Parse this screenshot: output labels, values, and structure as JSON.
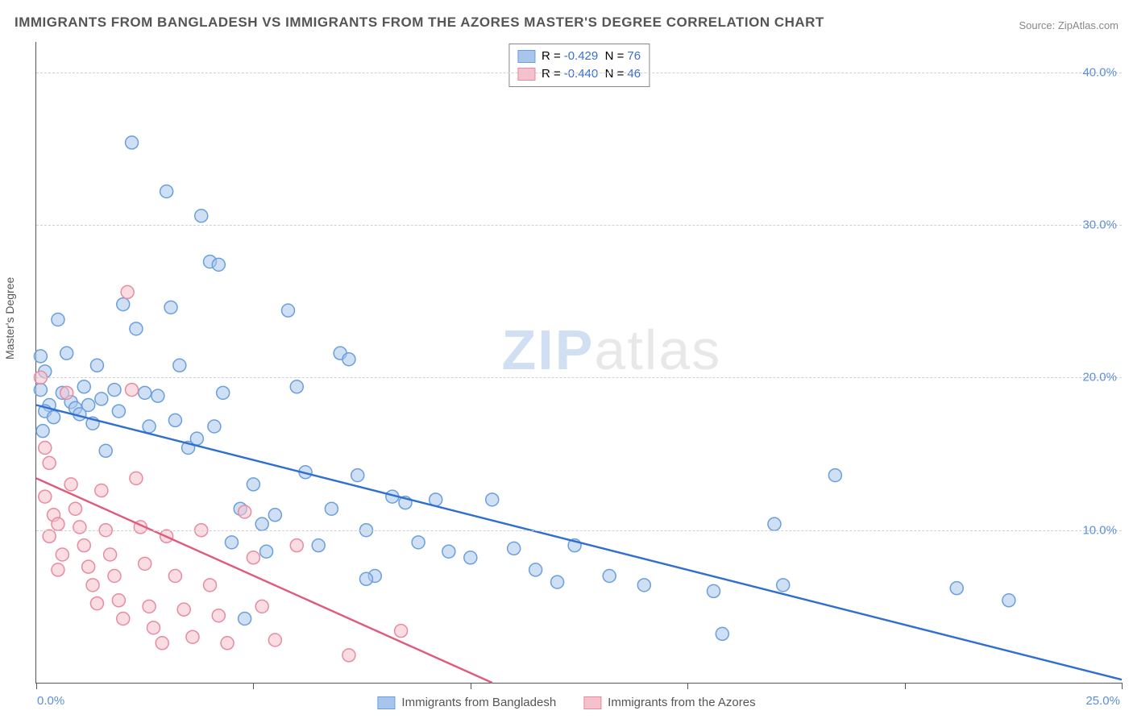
{
  "title": "IMMIGRANTS FROM BANGLADESH VS IMMIGRANTS FROM THE AZORES MASTER'S DEGREE CORRELATION CHART",
  "source": "Source: ZipAtlas.com",
  "watermark": {
    "zip": "ZIP",
    "atlas": "atlas"
  },
  "ylabel": "Master's Degree",
  "chart": {
    "type": "scatter",
    "xlim": [
      0,
      25
    ],
    "ylim": [
      0,
      42
    ],
    "xtick_positions": [
      0,
      5,
      10,
      15,
      20,
      25
    ],
    "xtick_labels": {
      "left": "0.0%",
      "right": "25.0%"
    },
    "ytick_positions": [
      10,
      20,
      30,
      40
    ],
    "ytick_labels": [
      "10.0%",
      "20.0%",
      "30.0%",
      "40.0%"
    ],
    "background_color": "#ffffff",
    "grid_color": "#d0d0d0",
    "series": [
      {
        "name": "Immigrants from Bangladesh",
        "marker_fill": "#a8c6ec",
        "marker_stroke": "#6a9fdd",
        "fill_opacity": 0.55,
        "marker_radius": 8,
        "line_color": "#2f6fd0",
        "line_width": 2.4,
        "trend": {
          "x1": 0,
          "y1": 18.2,
          "x2": 25,
          "y2": 0.2
        },
        "R": "-0.429",
        "N": "76",
        "points": [
          [
            0.1,
            21.4
          ],
          [
            0.2,
            20.4
          ],
          [
            0.1,
            19.2
          ],
          [
            0.3,
            18.2
          ],
          [
            0.2,
            17.8
          ],
          [
            0.4,
            17.4
          ],
          [
            0.15,
            16.5
          ],
          [
            0.5,
            23.8
          ],
          [
            0.6,
            19.0
          ],
          [
            0.8,
            18.4
          ],
          [
            0.9,
            18.0
          ],
          [
            1.0,
            17.6
          ],
          [
            1.1,
            19.4
          ],
          [
            1.2,
            18.2
          ],
          [
            1.3,
            17.0
          ],
          [
            1.4,
            20.8
          ],
          [
            1.5,
            18.6
          ],
          [
            0.7,
            21.6
          ],
          [
            1.6,
            15.2
          ],
          [
            1.8,
            19.2
          ],
          [
            1.9,
            17.8
          ],
          [
            2.0,
            24.8
          ],
          [
            2.2,
            35.4
          ],
          [
            2.3,
            23.2
          ],
          [
            2.5,
            19.0
          ],
          [
            2.6,
            16.8
          ],
          [
            2.8,
            18.8
          ],
          [
            3.0,
            32.2
          ],
          [
            3.1,
            24.6
          ],
          [
            3.2,
            17.2
          ],
          [
            3.3,
            20.8
          ],
          [
            3.5,
            15.4
          ],
          [
            3.7,
            16.0
          ],
          [
            3.8,
            30.6
          ],
          [
            4.0,
            27.6
          ],
          [
            4.2,
            27.4
          ],
          [
            4.1,
            16.8
          ],
          [
            4.3,
            19.0
          ],
          [
            4.5,
            9.2
          ],
          [
            4.7,
            11.4
          ],
          [
            4.8,
            4.2
          ],
          [
            5.0,
            13.0
          ],
          [
            5.2,
            10.4
          ],
          [
            5.3,
            8.6
          ],
          [
            5.5,
            11.0
          ],
          [
            5.8,
            24.4
          ],
          [
            6.0,
            19.4
          ],
          [
            6.2,
            13.8
          ],
          [
            6.5,
            9.0
          ],
          [
            6.8,
            11.4
          ],
          [
            7.0,
            21.6
          ],
          [
            7.2,
            21.2
          ],
          [
            7.4,
            13.6
          ],
          [
            7.6,
            10.0
          ],
          [
            7.8,
            7.0
          ],
          [
            7.6,
            6.8
          ],
          [
            8.2,
            12.2
          ],
          [
            8.5,
            11.8
          ],
          [
            8.8,
            9.2
          ],
          [
            9.2,
            12.0
          ],
          [
            9.5,
            8.6
          ],
          [
            10.0,
            8.2
          ],
          [
            10.5,
            12.0
          ],
          [
            11.0,
            8.8
          ],
          [
            11.5,
            7.4
          ],
          [
            12.0,
            6.6
          ],
          [
            12.4,
            9.0
          ],
          [
            13.2,
            7.0
          ],
          [
            14.0,
            6.4
          ],
          [
            15.6,
            6.0
          ],
          [
            15.8,
            3.2
          ],
          [
            17.0,
            10.4
          ],
          [
            17.2,
            6.4
          ],
          [
            18.4,
            13.6
          ],
          [
            21.2,
            6.2
          ],
          [
            22.4,
            5.4
          ]
        ]
      },
      {
        "name": "Immigrants from the Azores",
        "marker_fill": "#f5c1cc",
        "marker_stroke": "#e88aa0",
        "fill_opacity": 0.55,
        "marker_radius": 8,
        "line_color": "#e05a7c",
        "line_width": 2.4,
        "trend": {
          "x1": 0,
          "y1": 13.4,
          "x2": 10.5,
          "y2": 0
        },
        "R": "-0.440",
        "N": "46",
        "points": [
          [
            0.1,
            20.0
          ],
          [
            0.2,
            15.4
          ],
          [
            0.3,
            14.4
          ],
          [
            0.2,
            12.2
          ],
          [
            0.4,
            11.0
          ],
          [
            0.5,
            10.4
          ],
          [
            0.3,
            9.6
          ],
          [
            0.6,
            8.4
          ],
          [
            0.5,
            7.4
          ],
          [
            0.7,
            19.0
          ],
          [
            0.8,
            13.0
          ],
          [
            0.9,
            11.4
          ],
          [
            1.0,
            10.2
          ],
          [
            1.1,
            9.0
          ],
          [
            1.2,
            7.6
          ],
          [
            1.3,
            6.4
          ],
          [
            1.4,
            5.2
          ],
          [
            1.5,
            12.6
          ],
          [
            1.6,
            10.0
          ],
          [
            1.7,
            8.4
          ],
          [
            1.8,
            7.0
          ],
          [
            1.9,
            5.4
          ],
          [
            2.0,
            4.2
          ],
          [
            2.1,
            25.6
          ],
          [
            2.2,
            19.2
          ],
          [
            2.3,
            13.4
          ],
          [
            2.4,
            10.2
          ],
          [
            2.5,
            7.8
          ],
          [
            2.6,
            5.0
          ],
          [
            2.7,
            3.6
          ],
          [
            2.9,
            2.6
          ],
          [
            3.0,
            9.6
          ],
          [
            3.2,
            7.0
          ],
          [
            3.4,
            4.8
          ],
          [
            3.6,
            3.0
          ],
          [
            3.8,
            10.0
          ],
          [
            4.0,
            6.4
          ],
          [
            4.2,
            4.4
          ],
          [
            4.4,
            2.6
          ],
          [
            4.8,
            11.2
          ],
          [
            5.0,
            8.2
          ],
          [
            5.2,
            5.0
          ],
          [
            5.5,
            2.8
          ],
          [
            6.0,
            9.0
          ],
          [
            7.2,
            1.8
          ],
          [
            8.4,
            3.4
          ]
        ]
      }
    ]
  },
  "legend": {
    "rows": [
      {
        "swatch_fill": "#a8c6ec",
        "swatch_stroke": "#6a9fdd",
        "R_label": "R =",
        "R_val": "-0.429",
        "N_label": "N =",
        "N_val": "76"
      },
      {
        "swatch_fill": "#f5c1cc",
        "swatch_stroke": "#e88aa0",
        "R_label": "R =",
        "R_val": "-0.440",
        "N_label": "N =",
        "N_val": "46"
      }
    ]
  },
  "bottom_legend": [
    {
      "fill": "#a8c6ec",
      "stroke": "#6a9fdd",
      "label": "Immigrants from Bangladesh"
    },
    {
      "fill": "#f5c1cc",
      "stroke": "#e88aa0",
      "label": "Immigrants from the Azores"
    }
  ]
}
